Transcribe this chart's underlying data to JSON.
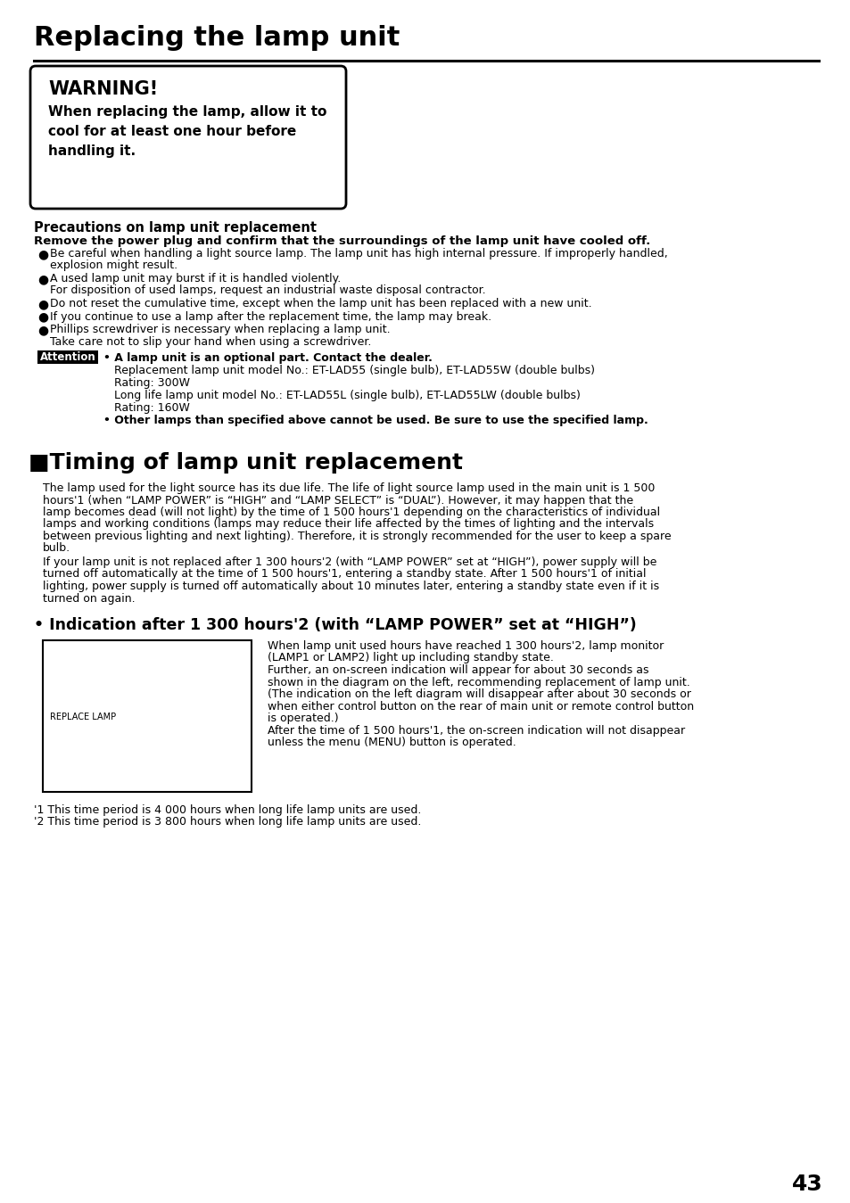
{
  "bg_color": "#ffffff",
  "page_number": "43",
  "main_title": "Replacing the lamp unit",
  "warning_title": "WARNING!",
  "warning_body_lines": [
    "When replacing the lamp, allow it to",
    "cool for at least one hour before",
    "handling it."
  ],
  "precautions_title": "Precautions on lamp unit replacement",
  "precautions_bold": "Remove the power plug and confirm that the surroundings of the lamp unit have cooled off.",
  "bullet_items": [
    [
      "Be careful when handling a light source lamp. The lamp unit has high internal pressure. If improperly handled,",
      "explosion might result."
    ],
    [
      "A used lamp unit may burst if it is handled violently.",
      "For disposition of used lamps, request an industrial waste disposal contractor."
    ],
    [
      "Do not reset the cumulative time, except when the lamp unit has been replaced with a new unit."
    ],
    [
      "If you continue to use a lamp after the replacement time, the lamp may break."
    ],
    [
      "Phillips screwdriver is necessary when replacing a lamp unit.",
      "Take care not to slip your hand when using a screwdriver."
    ]
  ],
  "attention_label": "Attention",
  "attention_block": [
    [
      true,
      "• A lamp unit is an optional part. Contact the dealer."
    ],
    [
      false,
      "   Replacement lamp unit model No.: ET-LAD55 (single bulb), ET-LAD55W (double bulbs)"
    ],
    [
      false,
      "   Rating: 300W"
    ],
    [
      false,
      "   Long life lamp unit model No.: ET-LAD55L (single bulb), ET-LAD55LW (double bulbs)"
    ],
    [
      false,
      "   Rating: 160W"
    ],
    [
      true,
      "• Other lamps than specified above cannot be used. Be sure to use the specified lamp."
    ]
  ],
  "section2_title": "■Timing of lamp unit replacement",
  "section2_body1_lines": [
    "The lamp used for the light source has its due life. The life of light source lamp used in the main unit is 1 500",
    "hours'1 (when “LAMP POWER” is “HIGH” and “LAMP SELECT” is “DUAL”). However, it may happen that the",
    "lamp becomes dead (will not light) by the time of 1 500 hours'1 depending on the characteristics of individual",
    "lamps and working conditions (lamps may reduce their life affected by the times of lighting and the intervals",
    "between previous lighting and next lighting). Therefore, it is strongly recommended for the user to keep a spare",
    "bulb."
  ],
  "section2_body2_lines": [
    "If your lamp unit is not replaced after 1 300 hours'2 (with “LAMP POWER” set at “HIGH”), power supply will be",
    "turned off automatically at the time of 1 500 hours'1, entering a standby state. After 1 500 hours'1 of initial",
    "lighting, power supply is turned off automatically about 10 minutes later, entering a standby state even if it is",
    "turned on again."
  ],
  "subsection_title": "• Indication after 1 300 hours'2 (with “LAMP POWER” set at “HIGH”)",
  "replace_lamp_label": "REPLACE LAMP",
  "right_text_lines": [
    "When lamp unit used hours have reached 1 300 hours'2, lamp monitor",
    "(LAMP1 or LAMP2) light up including standby state.",
    "Further, an on-screen indication will appear for about 30 seconds as",
    "shown in the diagram on the left, recommending replacement of lamp unit.",
    "(The indication on the left diagram will disappear after about 30 seconds or",
    "when either control button on the rear of main unit or remote control button",
    "is operated.)",
    "After the time of 1 500 hours'1, the on-screen indication will not disappear",
    "unless the menu (MENU) button is operated."
  ],
  "footnote1": "'1 This time period is 4 000 hours when long life lamp units are used.",
  "footnote2": "'2 This time period is 3 800 hours when long life lamp units are used."
}
